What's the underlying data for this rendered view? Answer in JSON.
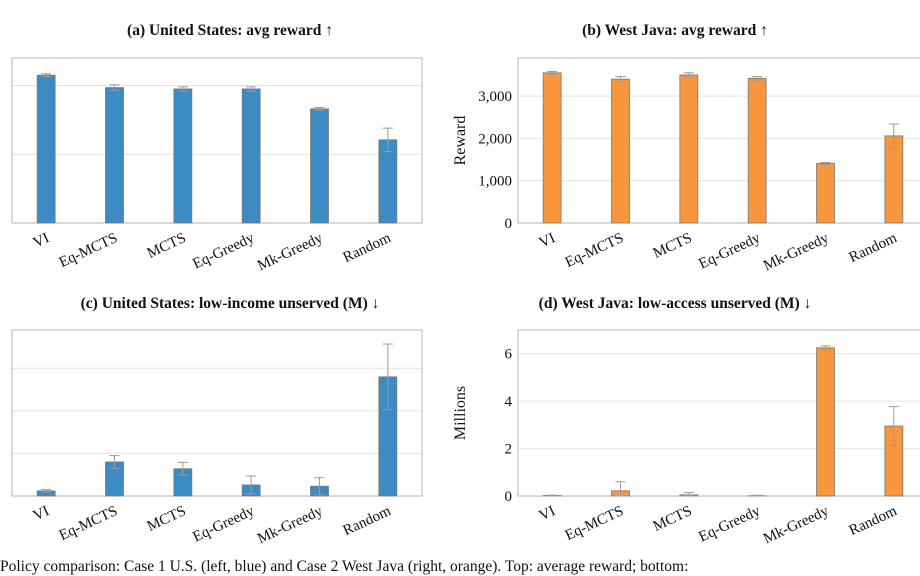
{
  "chart_data": [
    {
      "id": "a",
      "type": "bar",
      "title": "(a) United States: avg reward ↑",
      "ylabel": "",
      "categories": [
        "VI",
        "Eq-MCTS",
        "MCTS",
        "Eq-Greedy",
        "Mk-Greedy",
        "Random"
      ],
      "values": [
        2.15,
        1.97,
        1.95,
        1.95,
        1.66,
        1.21
      ],
      "errors": [
        0.02,
        0.04,
        0.03,
        0.03,
        0.02,
        0.17
      ],
      "ylim": [
        0,
        2.4
      ],
      "yticks": [
        0,
        1,
        2
      ],
      "ytick_labels": [],
      "grid": true,
      "color": "#3d8bc4"
    },
    {
      "id": "b",
      "type": "bar",
      "title": "(b) West Java: avg reward ↑",
      "ylabel": "Reward",
      "categories": [
        "VI",
        "Eq-MCTS",
        "MCTS",
        "Eq-Greedy",
        "Mk-Greedy",
        "Random"
      ],
      "values": [
        3550,
        3400,
        3500,
        3420,
        1410,
        2060
      ],
      "errors": [
        30,
        60,
        50,
        40,
        20,
        280
      ],
      "ylim": [
        0,
        3900
      ],
      "yticks": [
        0,
        1000,
        2000,
        3000
      ],
      "ytick_labels": [
        "0",
        "1,000",
        "2,000",
        "3,000"
      ],
      "grid": true,
      "color": "#f7963c"
    },
    {
      "id": "c",
      "type": "bar",
      "title": "(c) United States: low-income unserved (M) ↓",
      "ylabel": "",
      "categories": [
        "VI",
        "Eq-MCTS",
        "MCTS",
        "Eq-Greedy",
        "Mk-Greedy",
        "Random"
      ],
      "values": [
        0.12,
        0.8,
        0.64,
        0.26,
        0.23,
        2.8
      ],
      "errors": [
        0.03,
        0.15,
        0.15,
        0.21,
        0.2,
        0.77
      ],
      "ylim": [
        0,
        3.9
      ],
      "yticks": [
        0,
        1,
        2,
        3
      ],
      "ytick_labels": [],
      "grid": true,
      "color": "#3d8bc4"
    },
    {
      "id": "d",
      "type": "bar",
      "title": "(d) West Java: low-access unserved (M) ↓",
      "ylabel": "Millions",
      "categories": [
        "VI",
        "Eq-MCTS",
        "MCTS",
        "Eq-Greedy",
        "Mk-Greedy",
        "Random"
      ],
      "values": [
        0.02,
        0.22,
        0.05,
        0.01,
        6.25,
        2.95
      ],
      "errors": [
        0.02,
        0.38,
        0.1,
        0.02,
        0.08,
        0.82
      ],
      "ylim": [
        0,
        7
      ],
      "yticks": [
        0,
        2,
        4,
        6
      ],
      "ytick_labels": [
        "0",
        "2",
        "4",
        "6"
      ],
      "grid": true,
      "color": "#f7963c"
    }
  ],
  "caption": "Policy comparison: Case 1 U.S. (left, blue) and Case 2 West Java (right, orange). Top: average reward; bottom:"
}
